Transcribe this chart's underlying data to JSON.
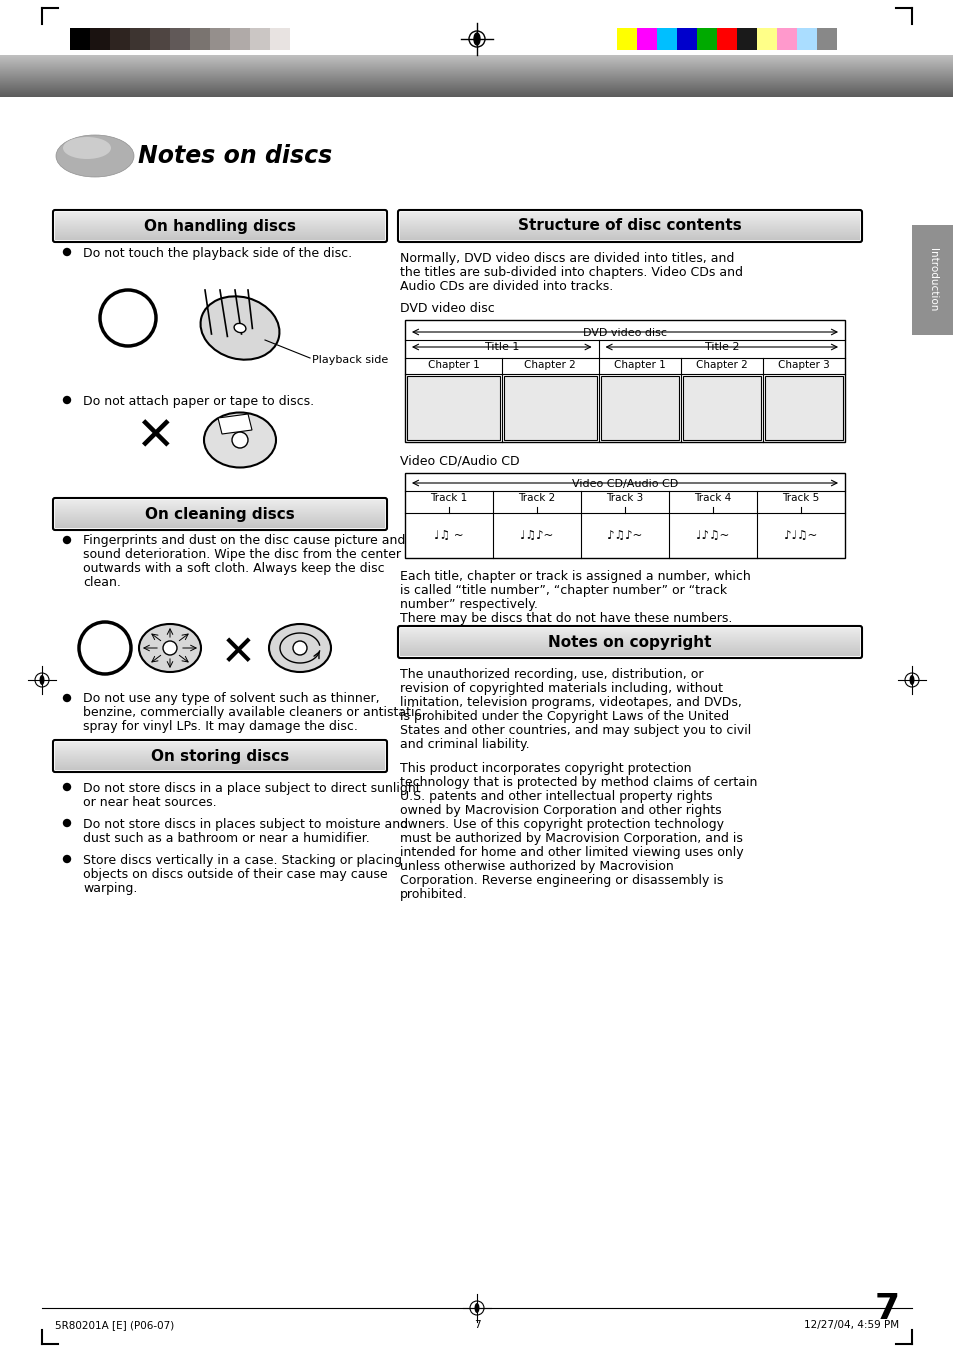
{
  "page_bg": "#ffffff",
  "header_bar_colors_left": [
    "#000000",
    "#1a1210",
    "#2e2420",
    "#3d3430",
    "#4f4542",
    "#615958",
    "#7a7470",
    "#958f8c",
    "#b0aaa8",
    "#cbc6c4",
    "#e8e3e1",
    "#ffffff"
  ],
  "header_bar_colors_right": [
    "#ffff00",
    "#ff00ff",
    "#00bfff",
    "#0000cc",
    "#00aa00",
    "#ff0000",
    "#1a1a1a",
    "#ffff88",
    "#ff99cc",
    "#aaddff",
    "#888888"
  ],
  "title_text": "Notes on discs",
  "section1_title": "On handling discs",
  "section2_title": "Structure of disc contents",
  "section3_title": "On cleaning discs",
  "section4_title": "On storing discs",
  "section5_title": "Notes on copyright",
  "intro_tab": "Introduction",
  "page_number": "7",
  "footer_left": "5R80201A [E] (P06-07)",
  "footer_center": "7",
  "footer_right": "12/27/04, 4:59 PM",
  "handling_bullet1": "Do not touch the playback side of the disc.",
  "handling_bullet2": "Do not attach paper or tape to discs.",
  "handling_label": "Playback side",
  "cleaning_bullet1_lines": [
    "Fingerprints and dust on the disc cause picture and",
    "sound deterioration. Wipe the disc from the center",
    "outwards with a soft cloth. Always keep the disc",
    "clean."
  ],
  "cleaning_bullet2_lines": [
    "Do not use any type of solvent such as thinner,",
    "benzine, commercially available cleaners or antistatic",
    "spray for vinyl LPs. It may damage the disc."
  ],
  "storing_bullet1_lines": [
    "Do not store discs in a place subject to direct sunlight",
    "or near heat sources."
  ],
  "storing_bullet2_lines": [
    "Do not store discs in places subject to moisture and",
    "dust such as a bathroom or near a humidifier."
  ],
  "storing_bullet3_lines": [
    "Store discs vertically in a case. Stacking or placing",
    "objects on discs outside of their case may cause",
    "warping."
  ],
  "dvd_label": "DVD video disc",
  "dvd_subtitle": "DVD video disc",
  "title1": "Title 1",
  "title2": "Title 2",
  "chapter1_1": "Chapter 1",
  "chapter1_2": "Chapter 2",
  "chapter2_1": "Chapter 1",
  "chapter2_2": "Chapter 2",
  "chapter2_3": "Chapter 3",
  "vcd_label": "Video CD/Audio CD",
  "vcd_subtitle": "Video CD/Audio CD",
  "track1": "Track 1",
  "track2": "Track 2",
  "track3": "Track 3",
  "track4": "Track 4",
  "track5": "Track 5",
  "intro_lines": [
    "Normally, DVD video discs are divided into titles, and",
    "the titles are sub-divided into chapters. Video CDs and",
    "Audio CDs are divided into tracks."
  ],
  "note_lines": [
    "Each title, chapter or track is assigned a number, which",
    "is called “title number”, “chapter number” or “track",
    "number” respectively.",
    "There may be discs that do not have these numbers."
  ],
  "cp1_lines": [
    "The unauthorized recording, use, distribution, or",
    "revision of copyrighted materials including, without",
    "limitation, television programs, videotapes, and DVDs,",
    "is prohibited under the Copyright Laws of the United",
    "States and other countries, and may subject you to civil",
    "and criminal liability."
  ],
  "cp2_lines": [
    "This product incorporates copyright protection",
    "technology that is protected by method claims of certain",
    "U.S. patents and other intellectual property rights",
    "owned by Macrovision Corporation and other rights",
    "owners. Use of this copyright protection technology",
    "must be authorized by Macrovision Corporation, and is",
    "intended for home and other limited viewing uses only",
    "unless otherwise authorized by Macrovision",
    "Corporation. Reverse engineering or disassembly is",
    "prohibited."
  ]
}
